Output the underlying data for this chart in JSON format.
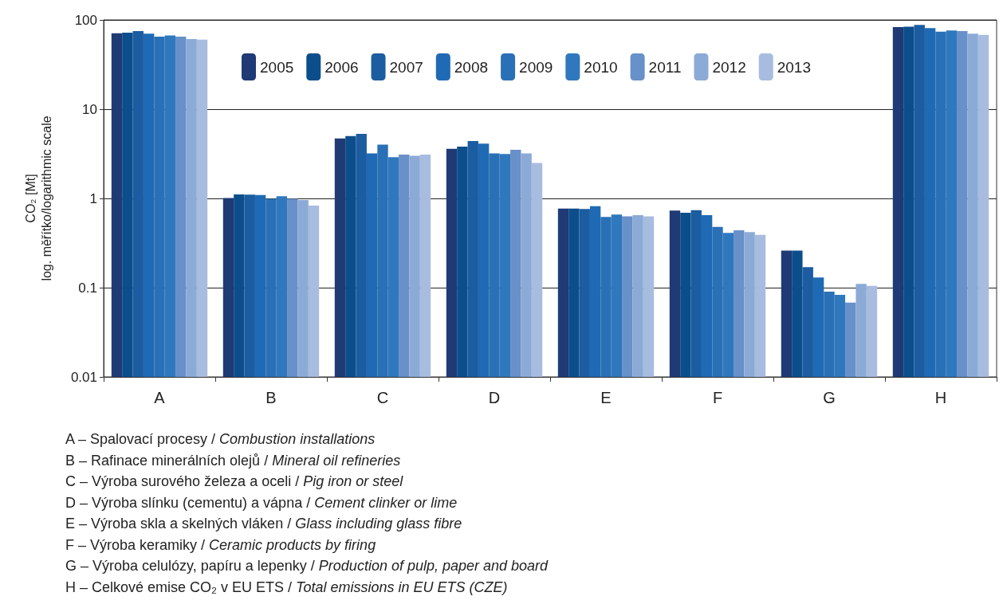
{
  "chart_data": {
    "type": "bar",
    "ylabel": "CO₂ [Mt]\nlog. měřítko/logarithmic scale",
    "categories": [
      "A",
      "B",
      "C",
      "D",
      "E",
      "F",
      "G",
      "H"
    ],
    "series": [
      {
        "name": "2005",
        "color": "#1f3a74",
        "values": [
          71,
          1.01,
          4.7,
          3.6,
          0.77,
          0.73,
          0.26,
          83
        ]
      },
      {
        "name": "2006",
        "color": "#0c4e8c",
        "values": [
          72,
          1.11,
          5.0,
          3.8,
          0.77,
          0.69,
          0.26,
          84
        ]
      },
      {
        "name": "2007",
        "color": "#1c5ca0",
        "values": [
          75,
          1.1,
          5.3,
          4.4,
          0.76,
          0.74,
          0.17,
          88
        ]
      },
      {
        "name": "2008",
        "color": "#1f6ab5",
        "values": [
          70,
          1.09,
          3.2,
          4.1,
          0.82,
          0.65,
          0.13,
          81
        ]
      },
      {
        "name": "2009",
        "color": "#2a70b6",
        "values": [
          65,
          0.99,
          4.0,
          3.2,
          0.62,
          0.48,
          0.09,
          74
        ]
      },
      {
        "name": "2010",
        "color": "#2f78bd",
        "values": [
          67,
          1.06,
          2.9,
          3.15,
          0.66,
          0.41,
          0.083,
          76
        ]
      },
      {
        "name": "2011",
        "color": "#6890c9",
        "values": [
          65,
          0.99,
          3.1,
          3.5,
          0.63,
          0.44,
          0.068,
          75
        ]
      },
      {
        "name": "2012",
        "color": "#8caad6",
        "values": [
          61,
          0.96,
          3.0,
          3.2,
          0.65,
          0.42,
          0.11,
          70
        ]
      },
      {
        "name": "2013",
        "color": "#a8bcdf",
        "values": [
          60,
          0.83,
          3.1,
          2.5,
          0.63,
          0.39,
          0.105,
          68
        ]
      }
    ],
    "ylim": [
      0.01,
      100
    ],
    "yticks": [
      0.01,
      0.1,
      1,
      10,
      100
    ],
    "log": true,
    "grid": "y",
    "legend": "top",
    "annotations": [
      "A – Spalovací procesy / Combustion installations",
      "B – Rafinace minerálních olejů / Mineral oil refineries",
      "C – Výroba surového železa a oceli / Pig iron or steel",
      "D – Výroba slínku (cementu) a vápna / Cement clinker or lime",
      "E – Výroba skla a skelných vláken / Glass including glass fibre",
      "F – Výroba keramiky / Ceramic products by firing",
      "G – Výroba celulózy, papíru a lepenky / Production of pulp, paper and board",
      "H – Celkové emise CO₂ v EU ETS / Total emissions in EU ETS (CZE)"
    ]
  }
}
